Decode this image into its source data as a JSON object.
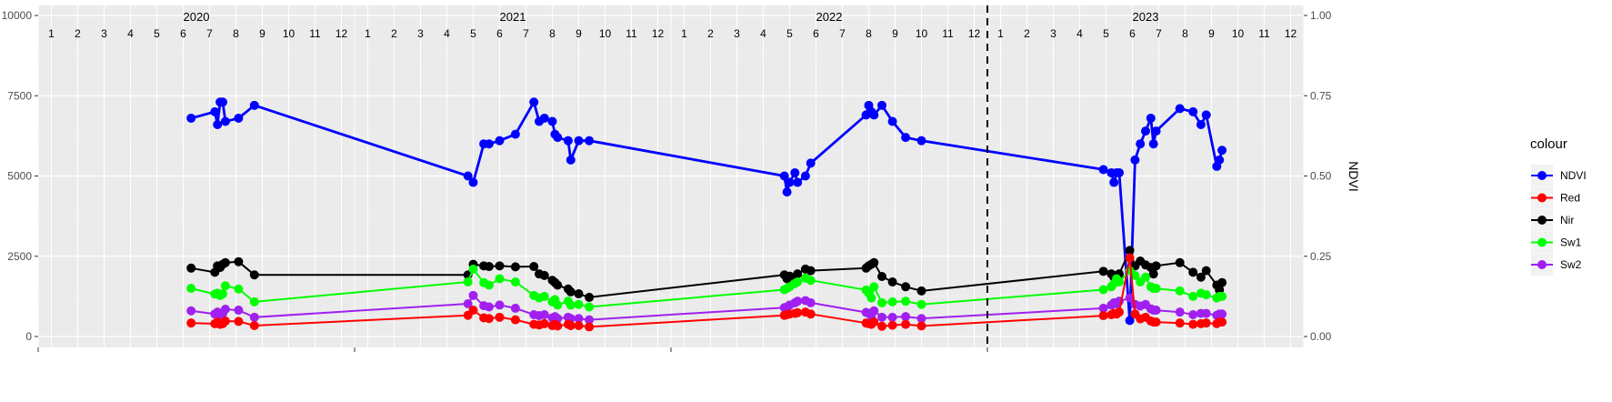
{
  "chart_data": {
    "type": "line",
    "y_left": {
      "lim": [
        0,
        10000
      ],
      "ticks": [
        0,
        2500,
        5000,
        7500,
        10000
      ]
    },
    "y_right": {
      "label": "NDVI",
      "lim": [
        0,
        1
      ],
      "ticks": [
        "0.00",
        "0.25",
        "0.50",
        "0.75",
        "1.00"
      ]
    },
    "x_range_months": [
      0,
      48
    ],
    "years": [
      {
        "label": "2020",
        "month": 6.5
      },
      {
        "label": "2021",
        "month": 18.5
      },
      {
        "label": "2022",
        "month": 30.5
      },
      {
        "label": "2023",
        "month": 42.5
      }
    ],
    "month_labels": [
      "1",
      "2",
      "3",
      "4",
      "5",
      "6",
      "7",
      "8",
      "9",
      "10",
      "11",
      "12"
    ],
    "vline_month": 36,
    "legend": {
      "title": "colour",
      "position": "right",
      "entries": [
        {
          "name": "NDVI",
          "color": "#0000FF"
        },
        {
          "name": "Red",
          "color": "#FF0000"
        },
        {
          "name": "Nir",
          "color": "#000000"
        },
        {
          "name": "Sw1",
          "color": "#00FF00"
        },
        {
          "name": "Sw2",
          "color": "#A020F0"
        }
      ]
    },
    "series": [
      {
        "name": "NDVI",
        "axis": "right",
        "color": "#0000FF",
        "points": [
          [
            6.3,
            0.68
          ],
          [
            7.2,
            0.7
          ],
          [
            7.3,
            0.66
          ],
          [
            7.4,
            0.73
          ],
          [
            7.5,
            0.73
          ],
          [
            7.6,
            0.67
          ],
          [
            8.1,
            0.68
          ],
          [
            8.7,
            0.72
          ],
          [
            16.8,
            0.5
          ],
          [
            17.0,
            0.48
          ],
          [
            17.4,
            0.6
          ],
          [
            17.6,
            0.6
          ],
          [
            18.0,
            0.61
          ],
          [
            18.6,
            0.63
          ],
          [
            19.3,
            0.73
          ],
          [
            19.5,
            0.67
          ],
          [
            19.7,
            0.68
          ],
          [
            20.0,
            0.67
          ],
          [
            20.1,
            0.63
          ],
          [
            20.2,
            0.62
          ],
          [
            20.6,
            0.61
          ],
          [
            20.7,
            0.55
          ],
          [
            21.0,
            0.61
          ],
          [
            21.4,
            0.61
          ],
          [
            28.8,
            0.5
          ],
          [
            28.9,
            0.45
          ],
          [
            29.0,
            0.48
          ],
          [
            29.2,
            0.51
          ],
          [
            29.3,
            0.48
          ],
          [
            29.6,
            0.5
          ],
          [
            29.8,
            0.54
          ],
          [
            31.9,
            0.69
          ],
          [
            32.0,
            0.72
          ],
          [
            32.1,
            0.7
          ],
          [
            32.2,
            0.69
          ],
          [
            32.5,
            0.72
          ],
          [
            32.9,
            0.67
          ],
          [
            33.4,
            0.62
          ],
          [
            34.0,
            0.61
          ],
          [
            40.9,
            0.52
          ],
          [
            41.2,
            0.51
          ],
          [
            41.3,
            0.48
          ],
          [
            41.4,
            0.51
          ],
          [
            41.5,
            0.51
          ],
          [
            41.9,
            0.05
          ],
          [
            42.1,
            0.55
          ],
          [
            42.3,
            0.6
          ],
          [
            42.5,
            0.64
          ],
          [
            42.7,
            0.68
          ],
          [
            42.8,
            0.6
          ],
          [
            42.9,
            0.64
          ],
          [
            43.8,
            0.71
          ],
          [
            44.3,
            0.7
          ],
          [
            44.6,
            0.66
          ],
          [
            44.8,
            0.69
          ],
          [
            45.2,
            0.53
          ],
          [
            45.3,
            0.55
          ],
          [
            45.4,
            0.58
          ]
        ]
      },
      {
        "name": "Nir",
        "axis": "left",
        "color": "#000000",
        "points": [
          [
            6.3,
            2130
          ],
          [
            7.2,
            2000
          ],
          [
            7.3,
            2200
          ],
          [
            7.4,
            2150
          ],
          [
            7.5,
            2250
          ],
          [
            7.6,
            2300
          ],
          [
            8.1,
            2330
          ],
          [
            8.7,
            1920
          ],
          [
            16.8,
            1920
          ],
          [
            17.0,
            2250
          ],
          [
            17.4,
            2200
          ],
          [
            17.6,
            2180
          ],
          [
            18.0,
            2200
          ],
          [
            18.6,
            2170
          ],
          [
            19.3,
            2180
          ],
          [
            19.5,
            1950
          ],
          [
            19.7,
            1900
          ],
          [
            20.0,
            1750
          ],
          [
            20.1,
            1680
          ],
          [
            20.2,
            1600
          ],
          [
            20.6,
            1480
          ],
          [
            20.7,
            1390
          ],
          [
            21.0,
            1330
          ],
          [
            21.4,
            1220
          ],
          [
            28.8,
            1920
          ],
          [
            28.9,
            1800
          ],
          [
            29.0,
            1880
          ],
          [
            29.2,
            1850
          ],
          [
            29.3,
            1950
          ],
          [
            29.6,
            2100
          ],
          [
            29.8,
            2050
          ],
          [
            31.9,
            2130
          ],
          [
            32.0,
            2200
          ],
          [
            32.1,
            2250
          ],
          [
            32.2,
            2300
          ],
          [
            32.5,
            1870
          ],
          [
            32.9,
            1700
          ],
          [
            33.4,
            1550
          ],
          [
            34.0,
            1420
          ],
          [
            40.9,
            2030
          ],
          [
            41.2,
            1950
          ],
          [
            41.3,
            1850
          ],
          [
            41.4,
            1900
          ],
          [
            41.5,
            1950
          ],
          [
            41.9,
            2680
          ],
          [
            42.1,
            2200
          ],
          [
            42.3,
            2350
          ],
          [
            42.5,
            2230
          ],
          [
            42.7,
            2150
          ],
          [
            42.8,
            1950
          ],
          [
            42.9,
            2200
          ],
          [
            43.8,
            2300
          ],
          [
            44.3,
            2000
          ],
          [
            44.6,
            1850
          ],
          [
            44.8,
            2050
          ],
          [
            45.2,
            1600
          ],
          [
            45.3,
            1450
          ],
          [
            45.4,
            1680
          ]
        ]
      },
      {
        "name": "Sw1",
        "axis": "left",
        "color": "#00FF00",
        "points": [
          [
            6.3,
            1500
          ],
          [
            7.2,
            1320
          ],
          [
            7.3,
            1350
          ],
          [
            7.4,
            1280
          ],
          [
            7.5,
            1330
          ],
          [
            7.6,
            1580
          ],
          [
            8.1,
            1480
          ],
          [
            8.7,
            1080
          ],
          [
            16.8,
            1700
          ],
          [
            17.0,
            2100
          ],
          [
            17.4,
            1680
          ],
          [
            17.6,
            1600
          ],
          [
            18.0,
            1800
          ],
          [
            18.6,
            1700
          ],
          [
            19.3,
            1280
          ],
          [
            19.5,
            1200
          ],
          [
            19.7,
            1250
          ],
          [
            20.0,
            1080
          ],
          [
            20.1,
            1150
          ],
          [
            20.2,
            980
          ],
          [
            20.6,
            1100
          ],
          [
            20.7,
            980
          ],
          [
            21.0,
            1000
          ],
          [
            21.4,
            920
          ],
          [
            28.8,
            1460
          ],
          [
            28.9,
            1500
          ],
          [
            29.0,
            1550
          ],
          [
            29.2,
            1650
          ],
          [
            29.3,
            1700
          ],
          [
            29.6,
            1820
          ],
          [
            29.8,
            1750
          ],
          [
            31.9,
            1450
          ],
          [
            32.0,
            1350
          ],
          [
            32.1,
            1200
          ],
          [
            32.2,
            1550
          ],
          [
            32.5,
            1050
          ],
          [
            32.9,
            1080
          ],
          [
            33.4,
            1100
          ],
          [
            34.0,
            1000
          ],
          [
            40.9,
            1460
          ],
          [
            41.2,
            1550
          ],
          [
            41.3,
            1650
          ],
          [
            41.4,
            1800
          ],
          [
            41.5,
            1700
          ],
          [
            41.9,
            2050
          ],
          [
            42.1,
            1900
          ],
          [
            42.3,
            1700
          ],
          [
            42.5,
            1850
          ],
          [
            42.7,
            1550
          ],
          [
            42.8,
            1500
          ],
          [
            42.9,
            1500
          ],
          [
            43.8,
            1420
          ],
          [
            44.3,
            1250
          ],
          [
            44.6,
            1350
          ],
          [
            44.8,
            1300
          ],
          [
            45.2,
            1200
          ],
          [
            45.3,
            1250
          ],
          [
            45.4,
            1250
          ]
        ]
      },
      {
        "name": "Sw2",
        "axis": "left",
        "color": "#A020F0",
        "points": [
          [
            6.3,
            800
          ],
          [
            7.2,
            700
          ],
          [
            7.3,
            760
          ],
          [
            7.4,
            680
          ],
          [
            7.5,
            720
          ],
          [
            7.6,
            850
          ],
          [
            8.1,
            820
          ],
          [
            8.7,
            600
          ],
          [
            16.8,
            1020
          ],
          [
            17.0,
            1280
          ],
          [
            17.4,
            960
          ],
          [
            17.6,
            920
          ],
          [
            18.0,
            980
          ],
          [
            18.6,
            880
          ],
          [
            19.3,
            680
          ],
          [
            19.5,
            650
          ],
          [
            19.7,
            680
          ],
          [
            20.0,
            580
          ],
          [
            20.1,
            620
          ],
          [
            20.2,
            560
          ],
          [
            20.6,
            600
          ],
          [
            20.7,
            560
          ],
          [
            21.0,
            560
          ],
          [
            21.4,
            520
          ],
          [
            28.8,
            900
          ],
          [
            28.9,
            920
          ],
          [
            29.0,
            980
          ],
          [
            29.2,
            1050
          ],
          [
            29.3,
            1100
          ],
          [
            29.6,
            1120
          ],
          [
            29.8,
            1050
          ],
          [
            31.9,
            750
          ],
          [
            32.0,
            720
          ],
          [
            32.1,
            650
          ],
          [
            32.2,
            800
          ],
          [
            32.5,
            600
          ],
          [
            32.9,
            600
          ],
          [
            33.4,
            620
          ],
          [
            34.0,
            560
          ],
          [
            40.9,
            880
          ],
          [
            41.2,
            980
          ],
          [
            41.3,
            1050
          ],
          [
            41.4,
            1020
          ],
          [
            41.5,
            1100
          ],
          [
            41.9,
            1200
          ],
          [
            42.1,
            1000
          ],
          [
            42.3,
            950
          ],
          [
            42.5,
            1000
          ],
          [
            42.7,
            860
          ],
          [
            42.8,
            820
          ],
          [
            42.9,
            820
          ],
          [
            43.8,
            760
          ],
          [
            44.3,
            680
          ],
          [
            44.6,
            720
          ],
          [
            44.8,
            720
          ],
          [
            45.2,
            660
          ],
          [
            45.3,
            700
          ],
          [
            45.4,
            700
          ]
        ]
      },
      {
        "name": "Red",
        "axis": "left",
        "color": "#FF0000",
        "points": [
          [
            6.3,
            420
          ],
          [
            7.2,
            400
          ],
          [
            7.3,
            450
          ],
          [
            7.4,
            380
          ],
          [
            7.5,
            400
          ],
          [
            7.6,
            480
          ],
          [
            8.1,
            470
          ],
          [
            8.7,
            340
          ],
          [
            16.8,
            660
          ],
          [
            17.0,
            820
          ],
          [
            17.4,
            580
          ],
          [
            17.6,
            560
          ],
          [
            18.0,
            600
          ],
          [
            18.6,
            520
          ],
          [
            19.3,
            380
          ],
          [
            19.5,
            360
          ],
          [
            19.7,
            400
          ],
          [
            20.0,
            340
          ],
          [
            20.1,
            380
          ],
          [
            20.2,
            330
          ],
          [
            20.6,
            380
          ],
          [
            20.7,
            340
          ],
          [
            21.0,
            340
          ],
          [
            21.4,
            300
          ],
          [
            28.8,
            660
          ],
          [
            28.9,
            680
          ],
          [
            29.0,
            700
          ],
          [
            29.2,
            720
          ],
          [
            29.3,
            740
          ],
          [
            29.6,
            760
          ],
          [
            29.8,
            700
          ],
          [
            31.9,
            420
          ],
          [
            32.0,
            400
          ],
          [
            32.1,
            380
          ],
          [
            32.2,
            450
          ],
          [
            32.5,
            320
          ],
          [
            32.9,
            350
          ],
          [
            33.4,
            380
          ],
          [
            34.0,
            330
          ],
          [
            40.9,
            650
          ],
          [
            41.2,
            680
          ],
          [
            41.3,
            720
          ],
          [
            41.4,
            700
          ],
          [
            41.5,
            760
          ],
          [
            41.9,
            2450
          ],
          [
            42.1,
            700
          ],
          [
            42.3,
            550
          ],
          [
            42.5,
            600
          ],
          [
            42.7,
            480
          ],
          [
            42.8,
            450
          ],
          [
            42.9,
            450
          ],
          [
            43.8,
            420
          ],
          [
            44.3,
            380
          ],
          [
            44.6,
            400
          ],
          [
            44.8,
            420
          ],
          [
            45.2,
            400
          ],
          [
            45.3,
            450
          ],
          [
            45.4,
            450
          ]
        ]
      }
    ]
  }
}
